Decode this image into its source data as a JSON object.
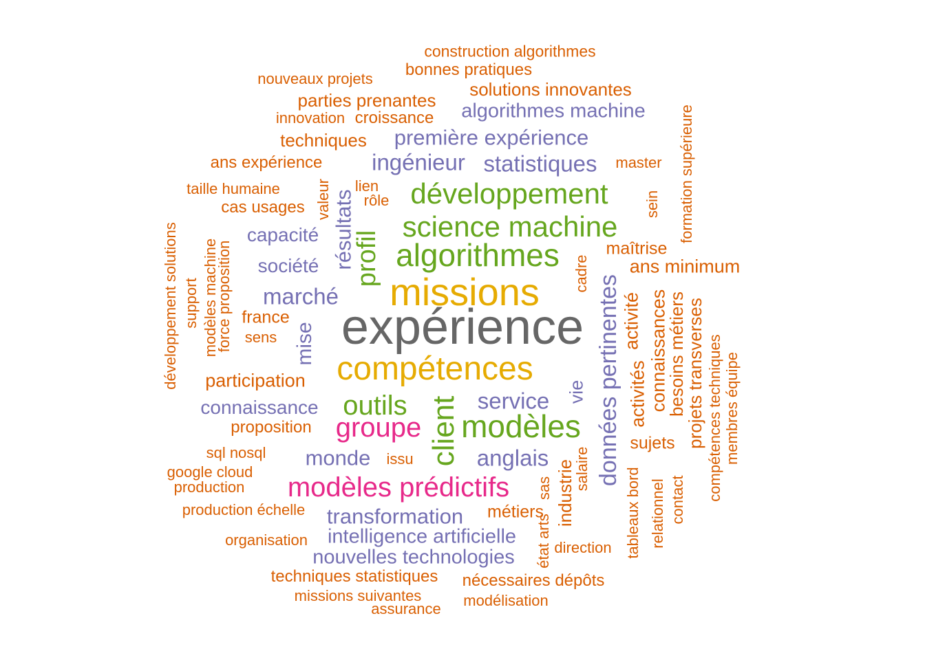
{
  "colors": {
    "orange": "#d95f02",
    "purple": "#7570b3",
    "green": "#66a61e",
    "gold": "#e6ab02",
    "pink": "#e7298a",
    "gray": "#666666"
  },
  "words": [
    {
      "text": "expérience",
      "color": "gray"
    },
    {
      "text": "missions",
      "color": "gold"
    },
    {
      "text": "compétences",
      "color": "gold"
    },
    {
      "text": "algorithmes",
      "color": "green"
    },
    {
      "text": "science machine",
      "color": "green"
    },
    {
      "text": "développement",
      "color": "green"
    },
    {
      "text": "outils",
      "color": "green"
    },
    {
      "text": "modèles",
      "color": "green"
    },
    {
      "text": "client",
      "color": "green"
    },
    {
      "text": "profil",
      "color": "green"
    },
    {
      "text": "groupe",
      "color": "pink"
    },
    {
      "text": "modèles prédictifs",
      "color": "pink"
    },
    {
      "text": "données pertinentes",
      "color": "purple"
    },
    {
      "text": "statistiques",
      "color": "purple"
    },
    {
      "text": "ingénieur",
      "color": "purple"
    },
    {
      "text": "première expérience",
      "color": "purple"
    },
    {
      "text": "algorithmes machine",
      "color": "purple"
    },
    {
      "text": "résultats",
      "color": "purple"
    },
    {
      "text": "marché",
      "color": "purple"
    },
    {
      "text": "service",
      "color": "purple"
    },
    {
      "text": "anglais",
      "color": "purple"
    },
    {
      "text": "monde",
      "color": "purple"
    },
    {
      "text": "transformation",
      "color": "purple"
    },
    {
      "text": "intelligence artificielle",
      "color": "purple"
    },
    {
      "text": "nouvelles technologies",
      "color": "purple"
    },
    {
      "text": "connaissance",
      "color": "purple"
    },
    {
      "text": "capacité",
      "color": "purple"
    },
    {
      "text": "société",
      "color": "purple"
    },
    {
      "text": "mise",
      "color": "purple"
    },
    {
      "text": "vie",
      "color": "purple"
    },
    {
      "text": "construction algorithmes",
      "color": "orange"
    },
    {
      "text": "bonnes pratiques",
      "color": "orange"
    },
    {
      "text": "nouveaux projets",
      "color": "orange"
    },
    {
      "text": "solutions innovantes",
      "color": "orange"
    },
    {
      "text": "parties prenantes",
      "color": "orange"
    },
    {
      "text": "innovation",
      "color": "orange"
    },
    {
      "text": "croissance",
      "color": "orange"
    },
    {
      "text": "techniques",
      "color": "orange"
    },
    {
      "text": "ans expérience",
      "color": "orange"
    },
    {
      "text": "master",
      "color": "orange"
    },
    {
      "text": "taille humaine",
      "color": "orange"
    },
    {
      "text": "lien",
      "color": "orange"
    },
    {
      "text": "rôle",
      "color": "orange"
    },
    {
      "text": "cas usages",
      "color": "orange"
    },
    {
      "text": "valeur",
      "color": "orange"
    },
    {
      "text": "formation supérieure",
      "color": "orange"
    },
    {
      "text": "sein",
      "color": "orange"
    },
    {
      "text": "maîtrise",
      "color": "orange"
    },
    {
      "text": "ans minimum",
      "color": "orange"
    },
    {
      "text": "cadre",
      "color": "orange"
    },
    {
      "text": "activité",
      "color": "orange"
    },
    {
      "text": "connaissances",
      "color": "orange"
    },
    {
      "text": "besoins métiers",
      "color": "orange"
    },
    {
      "text": "projets transverses",
      "color": "orange"
    },
    {
      "text": "compétences techniques",
      "color": "orange"
    },
    {
      "text": "membres équipe",
      "color": "orange"
    },
    {
      "text": "activités",
      "color": "orange"
    },
    {
      "text": "sujets",
      "color": "orange"
    },
    {
      "text": "développement solutions",
      "color": "orange"
    },
    {
      "text": "support",
      "color": "orange"
    },
    {
      "text": "modèles machine",
      "color": "orange"
    },
    {
      "text": "force proposition",
      "color": "orange"
    },
    {
      "text": "france",
      "color": "orange"
    },
    {
      "text": "sens",
      "color": "orange"
    },
    {
      "text": "participation",
      "color": "orange"
    },
    {
      "text": "proposition",
      "color": "orange"
    },
    {
      "text": "sql nosql",
      "color": "orange"
    },
    {
      "text": "issu",
      "color": "orange"
    },
    {
      "text": "google cloud",
      "color": "orange"
    },
    {
      "text": "production",
      "color": "orange"
    },
    {
      "text": "production échelle",
      "color": "orange"
    },
    {
      "text": "métiers",
      "color": "orange"
    },
    {
      "text": "industrie",
      "color": "orange"
    },
    {
      "text": "salaire",
      "color": "orange"
    },
    {
      "text": "sas",
      "color": "orange"
    },
    {
      "text": "état arts",
      "color": "orange"
    },
    {
      "text": "tableaux bord",
      "color": "orange"
    },
    {
      "text": "relationnel",
      "color": "orange"
    },
    {
      "text": "contact",
      "color": "orange"
    },
    {
      "text": "organisation",
      "color": "orange"
    },
    {
      "text": "direction",
      "color": "orange"
    },
    {
      "text": "techniques statistiques",
      "color": "orange"
    },
    {
      "text": "nécessaires dépôts",
      "color": "orange"
    },
    {
      "text": "missions suivantes",
      "color": "orange"
    },
    {
      "text": "assurance",
      "color": "orange"
    },
    {
      "text": "modélisation",
      "color": "orange"
    }
  ]
}
